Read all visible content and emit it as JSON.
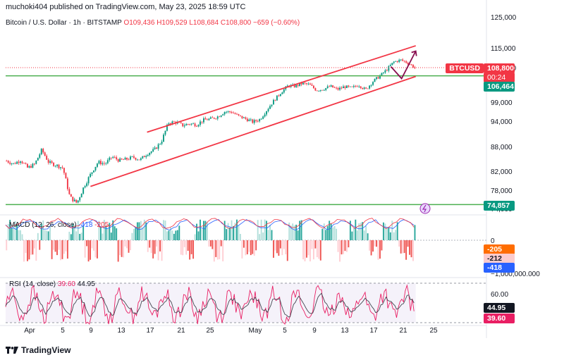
{
  "header": {
    "publisher": "muchoki404 published on TradingView.com, May 23, 2025 18:59 UTC"
  },
  "symbol_line": {
    "name": "Bitcoin / U.S. Dollar · 1h · BITSTAMP",
    "o": "O109,436",
    "h": "H109,529",
    "l": "L108,684",
    "c": "C108,800",
    "chg": "−659 (−0.60%)"
  },
  "price_axis": {
    "ticks": [
      "125,000",
      "115,000",
      "108,800",
      "99,000",
      "94,000",
      "88,000",
      "82,000",
      "78,000",
      "74,000"
    ]
  },
  "tags": {
    "symbol": "BTCUSD",
    "last_price": "108,800",
    "countdown": "00:24",
    "support_upper": "106,464",
    "support_lower": "74,857",
    "macd_a": "-205",
    "macd_b": "-212",
    "macd_c": "-418",
    "macd_axis_low": "−1,000,000.000",
    "macd_axis_zero": "0",
    "rsi_a": "44.95",
    "rsi_b": "39.60",
    "rsi_axis": "60.00"
  },
  "macd_label": {
    "name": "MACD (12, 26, close)",
    "v1": "-418",
    "v2": "-205"
  },
  "rsi_label": {
    "name": "RSI (14, close)",
    "v1": "39.60",
    "v2": "44.95"
  },
  "time_axis": {
    "ticks": [
      "Apr",
      "5",
      "9",
      "13",
      "17",
      "21",
      "25",
      "May",
      "5",
      "9",
      "13",
      "17",
      "21",
      "25"
    ]
  },
  "footer": {
    "brand": "TradingView"
  },
  "colors": {
    "up": "#089981",
    "down": "#f23645",
    "channel": "#f23645",
    "support": "#4caf50",
    "arrow": "#880e4f",
    "macd_signal": "#f23645",
    "macd_line": "#2962ff",
    "rsi": "#e91e63"
  },
  "chart_data": [
    {
      "type": "candlestick",
      "title": "Bitcoin / U.S. Dollar · 1h · BITSTAMP",
      "x_ticks": [
        "Apr",
        "5",
        "9",
        "13",
        "17",
        "21",
        "25",
        "May",
        "5",
        "9",
        "13",
        "17",
        "21",
        "25"
      ],
      "ylim": [
        72000,
        127000
      ],
      "y_ticks": [
        125000,
        115000,
        99000,
        94000,
        88000,
        82000,
        78000,
        74000
      ],
      "close_path": [
        [
          0,
          84500
        ],
        [
          2,
          83800
        ],
        [
          4,
          84700
        ],
        [
          6,
          82800
        ],
        [
          8,
          83700
        ],
        [
          10,
          87200
        ],
        [
          12,
          84100
        ],
        [
          14,
          83500
        ],
        [
          16,
          82800
        ],
        [
          18,
          76500
        ],
        [
          20,
          75200
        ],
        [
          22,
          78800
        ],
        [
          24,
          81500
        ],
        [
          26,
          84200
        ],
        [
          28,
          83800
        ],
        [
          30,
          85500
        ],
        [
          32,
          84600
        ],
        [
          34,
          84900
        ],
        [
          36,
          85400
        ],
        [
          38,
          84800
        ],
        [
          40,
          86300
        ],
        [
          42,
          87200
        ],
        [
          44,
          89200
        ],
        [
          46,
          93600
        ],
        [
          48,
          93800
        ],
        [
          50,
          93000
        ],
        [
          52,
          93400
        ],
        [
          54,
          93200
        ],
        [
          56,
          94300
        ],
        [
          58,
          94600
        ],
        [
          60,
          95200
        ],
        [
          62,
          96500
        ],
        [
          64,
          96400
        ],
        [
          66,
          95300
        ],
        [
          68,
          94600
        ],
        [
          70,
          93800
        ],
        [
          72,
          94500
        ],
        [
          74,
          97000
        ],
        [
          76,
          99500
        ],
        [
          78,
          101800
        ],
        [
          80,
          103700
        ],
        [
          82,
          103500
        ],
        [
          84,
          104300
        ],
        [
          86,
          104000
        ],
        [
          88,
          102400
        ],
        [
          90,
          102700
        ],
        [
          92,
          103500
        ],
        [
          94,
          102600
        ],
        [
          96,
          103400
        ],
        [
          98,
          103000
        ],
        [
          100,
          103900
        ],
        [
          102,
          102500
        ],
        [
          104,
          104800
        ],
        [
          106,
          106400
        ],
        [
          108,
          108200
        ],
        [
          110,
          110600
        ],
        [
          112,
          111200
        ],
        [
          114,
          110300
        ],
        [
          116,
          108800
        ]
      ],
      "last": 108800,
      "horizontal_levels": [
        106464,
        74857
      ],
      "channel_upper": [
        [
          40,
          91400
        ],
        [
          116,
          115700
        ]
      ],
      "channel_lower": [
        [
          24,
          78800
        ],
        [
          116,
          106300
        ]
      ],
      "projection_arrow": [
        [
          109,
          109100
        ],
        [
          112,
          105700
        ],
        [
          116,
          114000
        ]
      ]
    },
    {
      "type": "histogram",
      "title": "MACD (12, 26, close)",
      "values_shown": [
        -418,
        -205,
        -212
      ]
    },
    {
      "type": "line",
      "title": "RSI (14, close)",
      "values_shown": [
        39.6,
        44.95
      ],
      "y_ticks": [
        60
      ]
    }
  ]
}
